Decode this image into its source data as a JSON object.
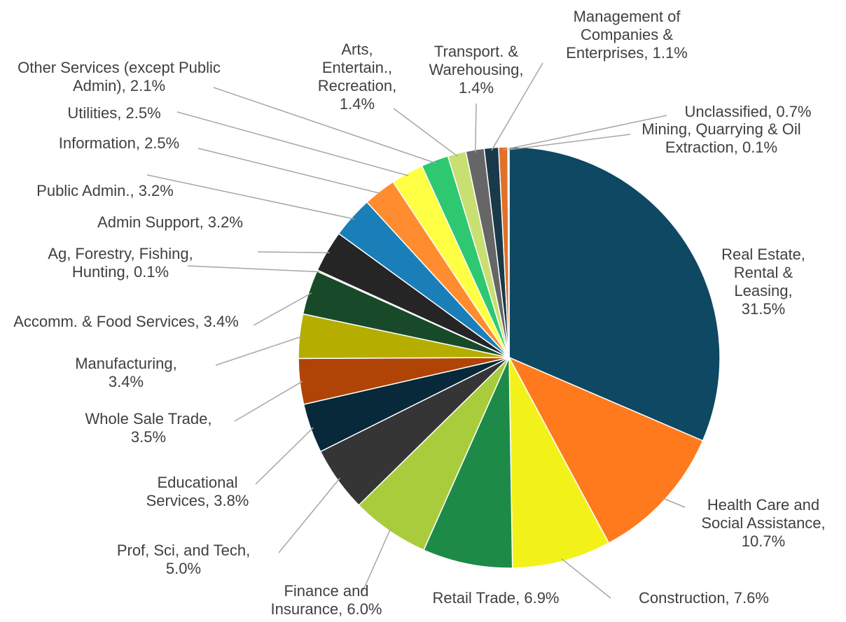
{
  "chart_data": {
    "type": "pie",
    "categories": [
      "Real Estate, Rental & Leasing,",
      "Health Care and Social Assistance,",
      "Construction,",
      "Retail Trade,",
      "Finance and Insurance,",
      "Prof, Sci, and Tech,",
      "Educational Services,",
      "Whole Sale Trade,",
      "Manufacturing,",
      "Accomm. & Food Services,",
      "Ag, Forestry, Fishing, Hunting,",
      "Admin Support,",
      "Public Admin.,",
      "Information,",
      "Utilities,",
      "Other Services (except Public Admin),",
      "Arts, Entertain., Recreation,",
      "Transport. & Warehousing,",
      "Management of Companies & Enterprises,",
      "Unclassified,",
      "Mining, Quarrying & Oil Extraction,"
    ],
    "values": [
      31.5,
      10.7,
      7.6,
      6.9,
      6.0,
      5.0,
      3.8,
      3.5,
      3.4,
      3.4,
      0.1,
      3.2,
      3.2,
      2.5,
      2.5,
      2.1,
      1.4,
      1.4,
      1.1,
      0.7,
      0.1
    ],
    "value_labels": [
      "31.5%",
      "10.7%",
      "7.6%",
      "6.9%",
      "6.0%",
      "5.0%",
      "3.8%",
      "3.5%",
      "3.4%",
      "3.4%",
      "0.1%",
      "3.2%",
      "3.2%",
      "2.5%",
      "2.5%",
      "2.1%",
      "1.4%",
      "1.4%",
      "1.1%",
      "0.7%",
      "0.1%"
    ],
    "colors": [
      "#0e4862",
      "#ff7a1c",
      "#f2f21a",
      "#1e8a48",
      "#a9cc3c",
      "#353535",
      "#07293a",
      "#b04406",
      "#b5ad00",
      "#184a2a",
      "#8a8a2a",
      "#252525",
      "#1a7fb8",
      "#ff8c2e",
      "#ffff44",
      "#2ec870",
      "#c8df72",
      "#666666",
      "#1a3a4a",
      "#e0702a",
      "#aaaaaa"
    ]
  }
}
